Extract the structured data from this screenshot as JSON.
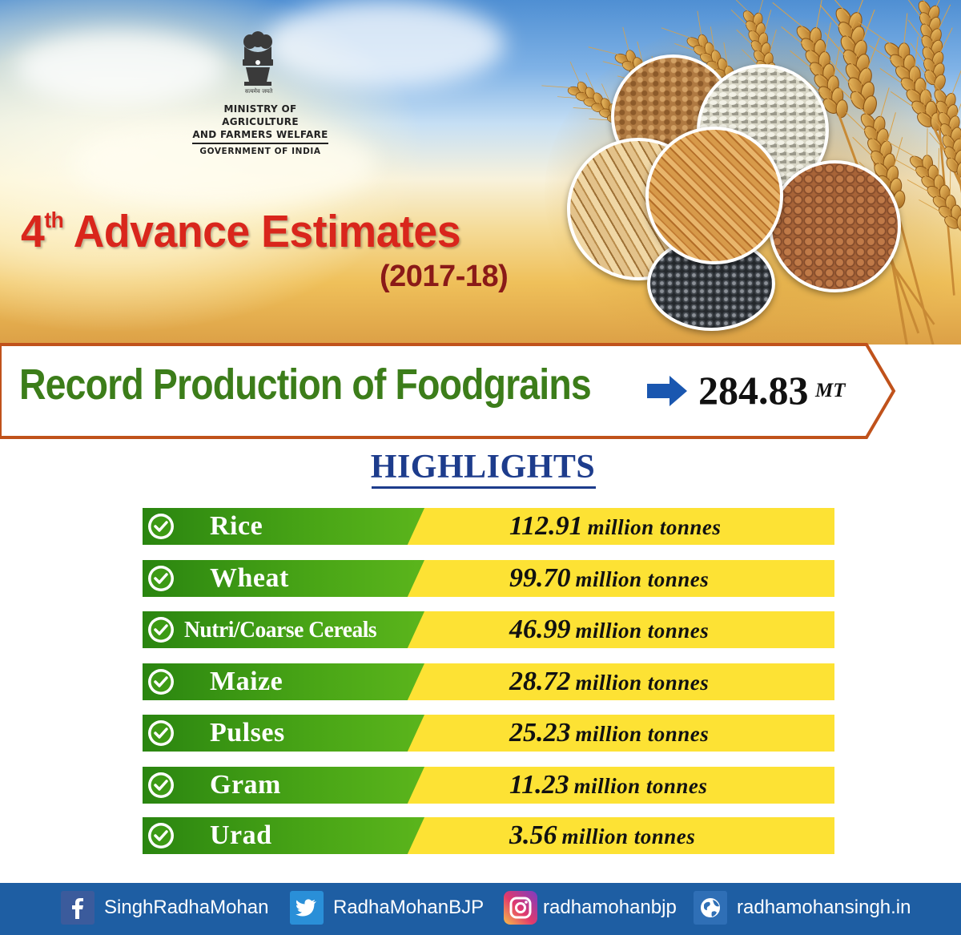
{
  "ministry": {
    "motto": "सत्यमेव जयते",
    "line1": "MINISTRY OF AGRICULTURE",
    "line2": "AND FARMERS WELFARE",
    "line3": "GOVERNMENT OF INDIA"
  },
  "title": {
    "ordinal_number": "4",
    "ordinal_suffix": "th",
    "text": "Advance Estimates",
    "year": "(2017-18)"
  },
  "record": {
    "label": "Record Production of Foodgrains",
    "value": "284.83",
    "unit": "MT"
  },
  "highlights": {
    "heading": "HIGHLIGHTS",
    "items": [
      {
        "crop": "Rice",
        "value": "112.91",
        "unit": "million tonnes"
      },
      {
        "crop": "Wheat",
        "value": "99.70",
        "unit": "million tonnes"
      },
      {
        "crop": "Nutri/Coarse Cereals",
        "value": "46.99",
        "unit": "million tonnes"
      },
      {
        "crop": "Maize",
        "value": "28.72",
        "unit": "million tonnes"
      },
      {
        "crop": "Pulses",
        "value": "25.23",
        "unit": "million tonnes"
      },
      {
        "crop": "Gram",
        "value": "11.23",
        "unit": "million tonnes"
      },
      {
        "crop": "Urad",
        "value": "3.56",
        "unit": "million tonnes"
      }
    ]
  },
  "footer": {
    "facebook": "SinghRadhaMohan",
    "twitter": "RadhaMohanBJP",
    "instagram": "radhamohanbjp",
    "website": "radhamohansingh.in"
  },
  "colors": {
    "title_red": "#d9261c",
    "record_green": "#3c7d1a",
    "highlight_blue": "#1d3c8c",
    "row_green": "#49a516",
    "row_yellow": "#fde234",
    "footer_blue": "#1e5ea3",
    "banner_border": "#c0521b"
  },
  "icons": [
    "national-emblem",
    "arrow-right-icon",
    "check-circle-icon",
    "facebook-icon",
    "twitter-icon",
    "instagram-icon",
    "globe-icon"
  ]
}
